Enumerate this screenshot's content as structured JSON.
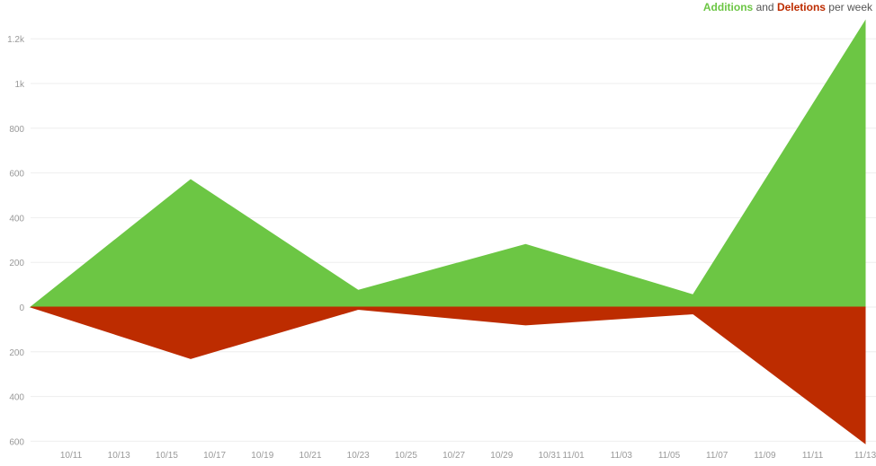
{
  "legend": {
    "additions_label": "Additions",
    "and_text": "and",
    "deletions_label": "Deletions",
    "suffix_text": "per week"
  },
  "chart_data": {
    "type": "area",
    "title": "",
    "xlabel": "",
    "ylabel": "",
    "x_start": "10/09",
    "x_end": "11/13",
    "x_ticks": [
      "10/11",
      "10/13",
      "10/15",
      "10/17",
      "10/19",
      "10/21",
      "10/23",
      "10/25",
      "10/27",
      "10/29",
      "10/31",
      "11/01",
      "11/03",
      "11/05",
      "11/07",
      "11/09",
      "11/11",
      "11/13"
    ],
    "y_ticks": [
      "1.2k",
      "1k",
      "800",
      "600",
      "400",
      "200",
      "0",
      "200",
      "400",
      "600"
    ],
    "ylim": [
      -600,
      1200
    ],
    "dates": [
      "10/09",
      "10/16",
      "10/23",
      "10/30",
      "11/06",
      "11/13"
    ],
    "series": [
      {
        "name": "Additions",
        "color": "#6cc644",
        "values": [
          0,
          570,
          75,
          280,
          55,
          1280
        ]
      },
      {
        "name": "Deletions",
        "color": "#bd2c00",
        "values": [
          0,
          -230,
          -10,
          -80,
          -30,
          -610
        ]
      }
    ],
    "grid": true
  }
}
